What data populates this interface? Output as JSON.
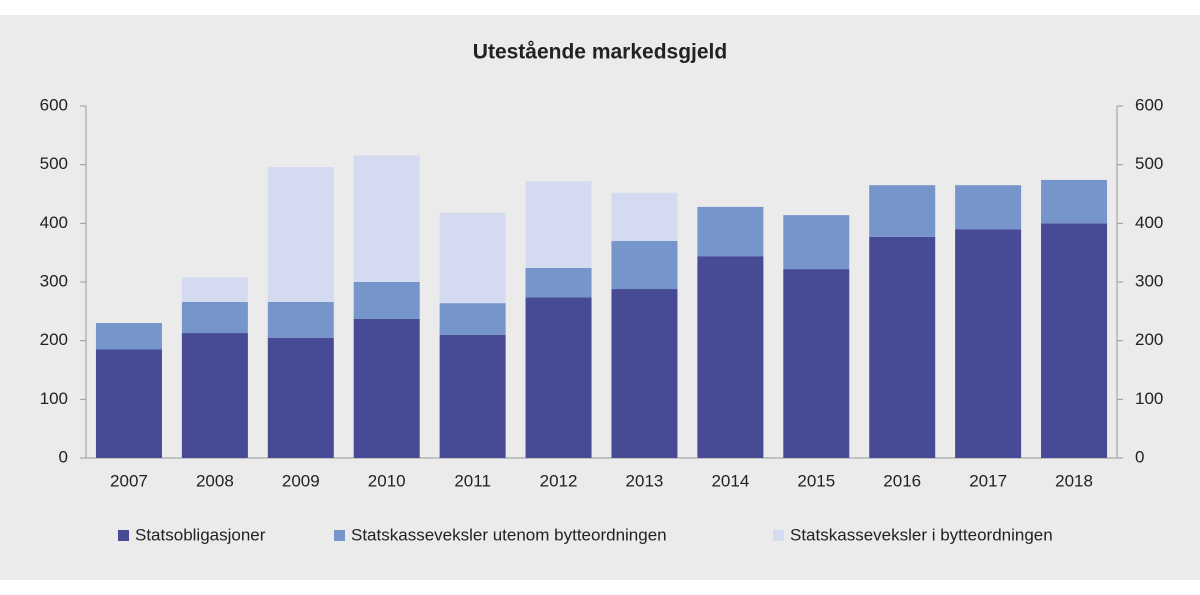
{
  "chart_data": {
    "type": "stacked-bar",
    "title": "Utestående markedsgjeld",
    "categories": [
      "2007",
      "2008",
      "2009",
      "2010",
      "2011",
      "2012",
      "2013",
      "2014",
      "2015",
      "2016",
      "2017",
      "2018"
    ],
    "series": [
      {
        "name": "Statsobligasjoner",
        "color": "#474b96",
        "values": [
          185,
          213,
          205,
          237,
          210,
          274,
          288,
          344,
          322,
          377,
          390,
          400
        ]
      },
      {
        "name": "Statskasseveksler utenom bytteordningen",
        "color": "#7695cb",
        "values": [
          45,
          53,
          61,
          63,
          54,
          50,
          82,
          84,
          92,
          88,
          75,
          74
        ]
      },
      {
        "name": "Statskasseveksler i bytteordningen",
        "color": "#d4dbf0",
        "values": [
          0,
          42,
          230,
          216,
          154,
          148,
          82,
          0,
          0,
          0,
          0,
          0
        ]
      }
    ],
    "ylim": [
      0,
      600
    ],
    "yticks": [
      0,
      100,
      200,
      300,
      400,
      500,
      600
    ],
    "y2lim": [
      0,
      600
    ],
    "y2ticks": [
      0,
      100,
      200,
      300,
      400,
      500,
      600
    ],
    "legend": "bottom"
  }
}
